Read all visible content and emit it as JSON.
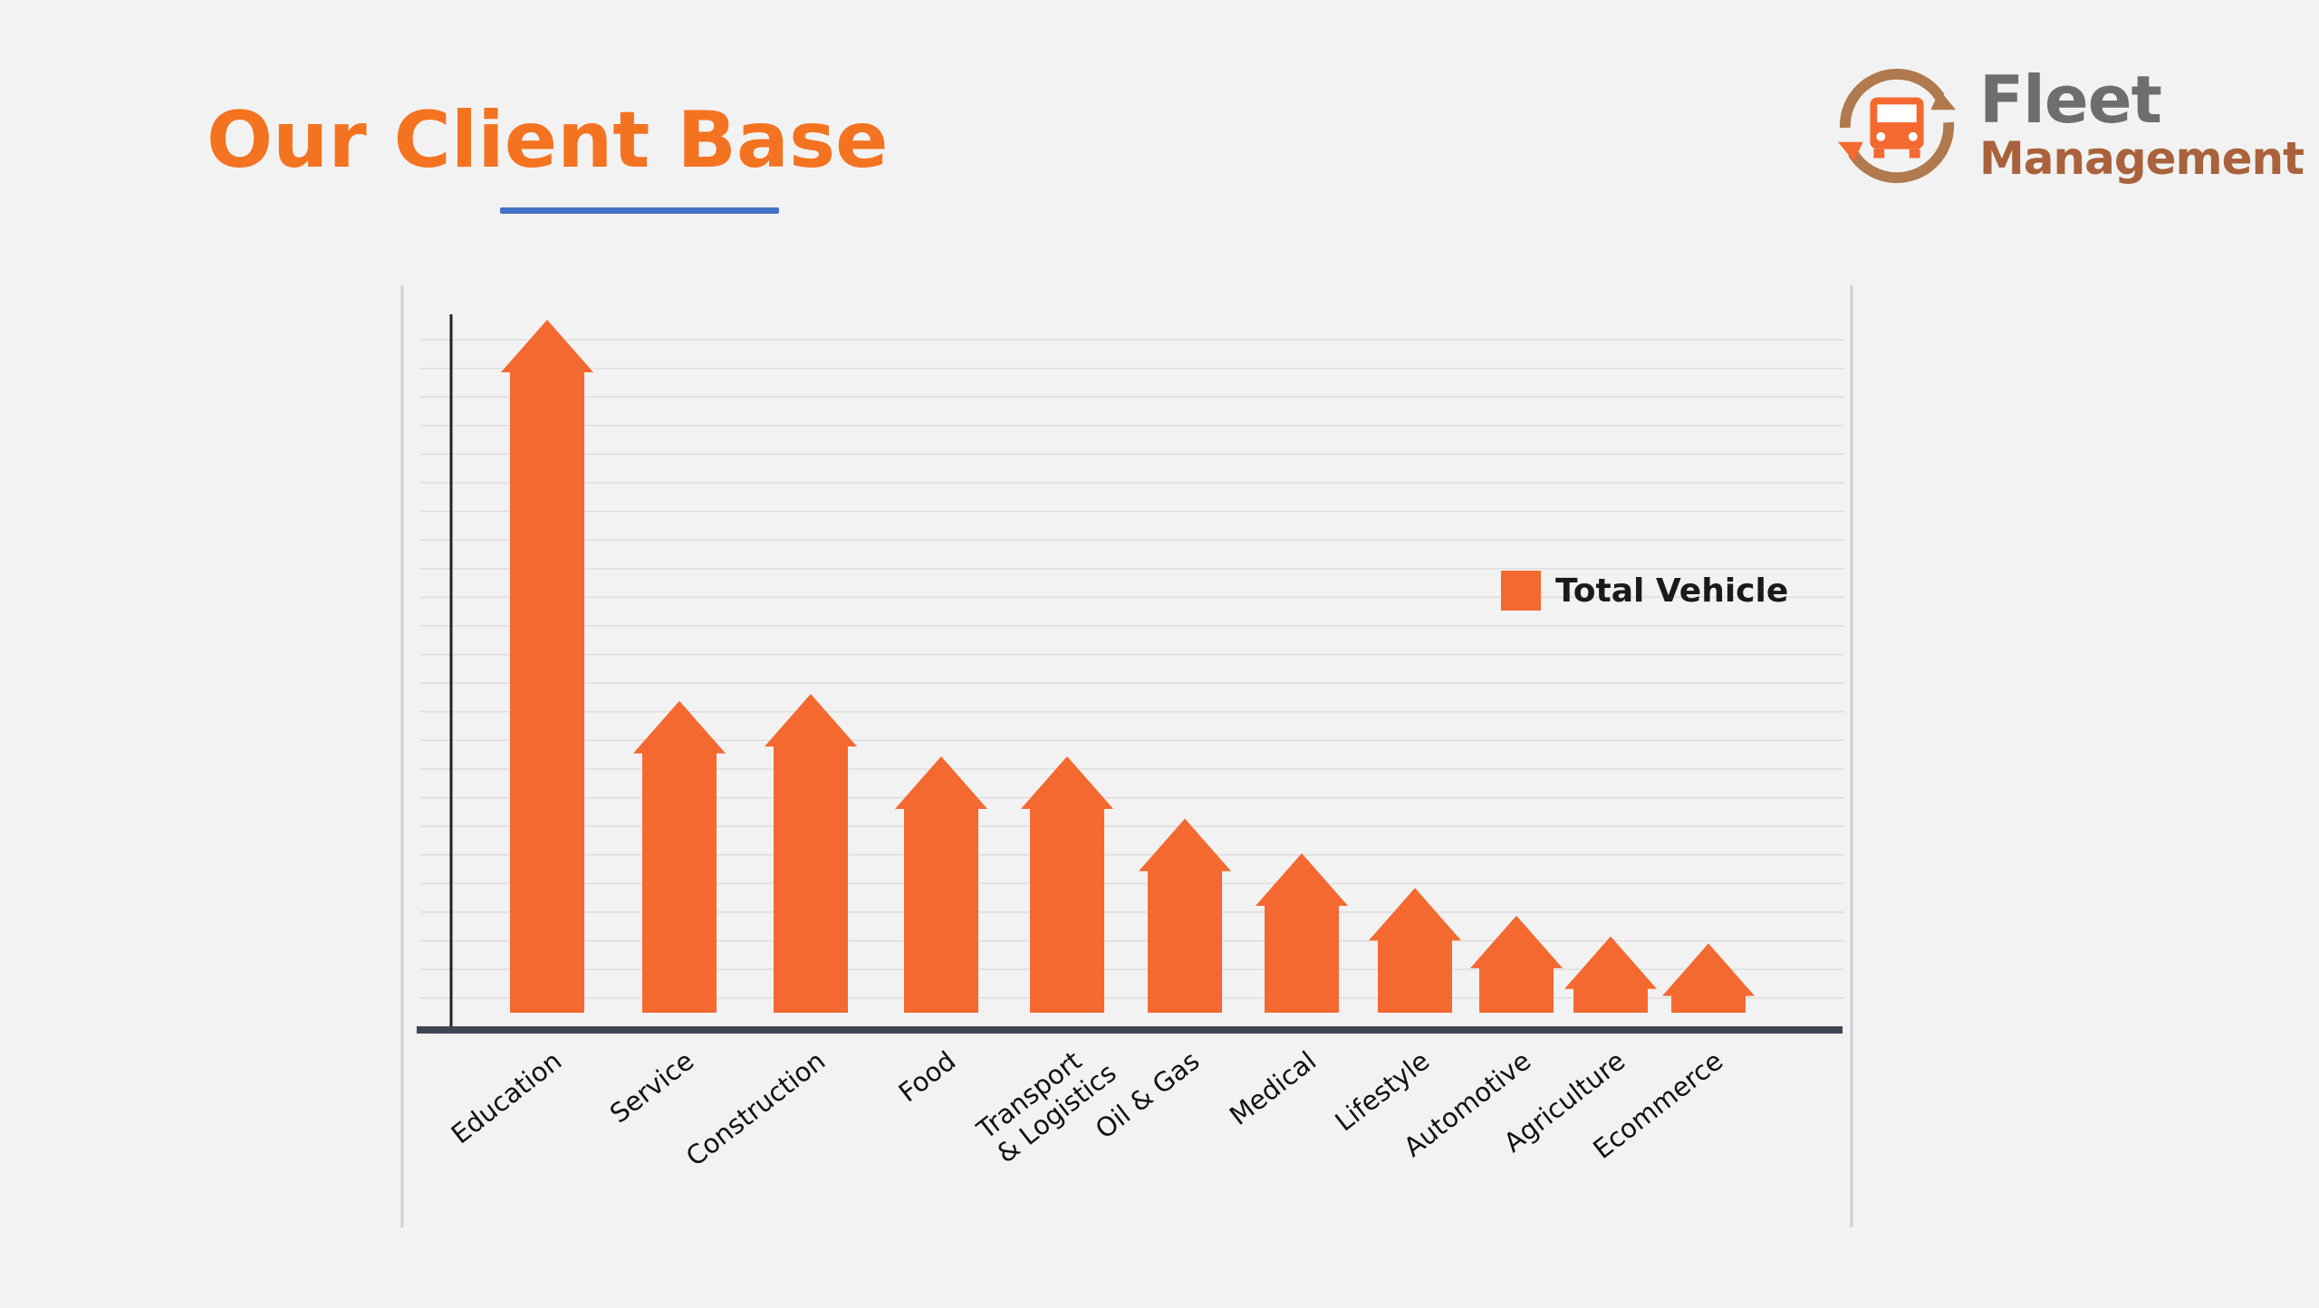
{
  "slide": {
    "title": "Our Client Base",
    "accent_color": "#f47321",
    "underline_color": "#4472c4"
  },
  "logo": {
    "word1": "Fleet",
    "word2": "Management",
    "icon": "truck-recycle-icon"
  },
  "chart_data": {
    "type": "bar",
    "bar_shape": "arrow",
    "categories": [
      "Education",
      "Service",
      "Construction",
      "Food",
      "Transport & Logistics",
      "Oil & Gas",
      "Medical",
      "Lifestyle",
      "Automotive",
      "Agriculture",
      "Ecommerce"
    ],
    "series": [
      {
        "name": "Total Vehicle",
        "color": "#f4692f",
        "values": [
          100,
          45,
          46,
          37,
          37,
          28,
          23,
          18,
          14,
          11,
          10
        ]
      }
    ],
    "ylim": [
      0,
      116
    ],
    "grid": true,
    "legend_position": "right"
  }
}
